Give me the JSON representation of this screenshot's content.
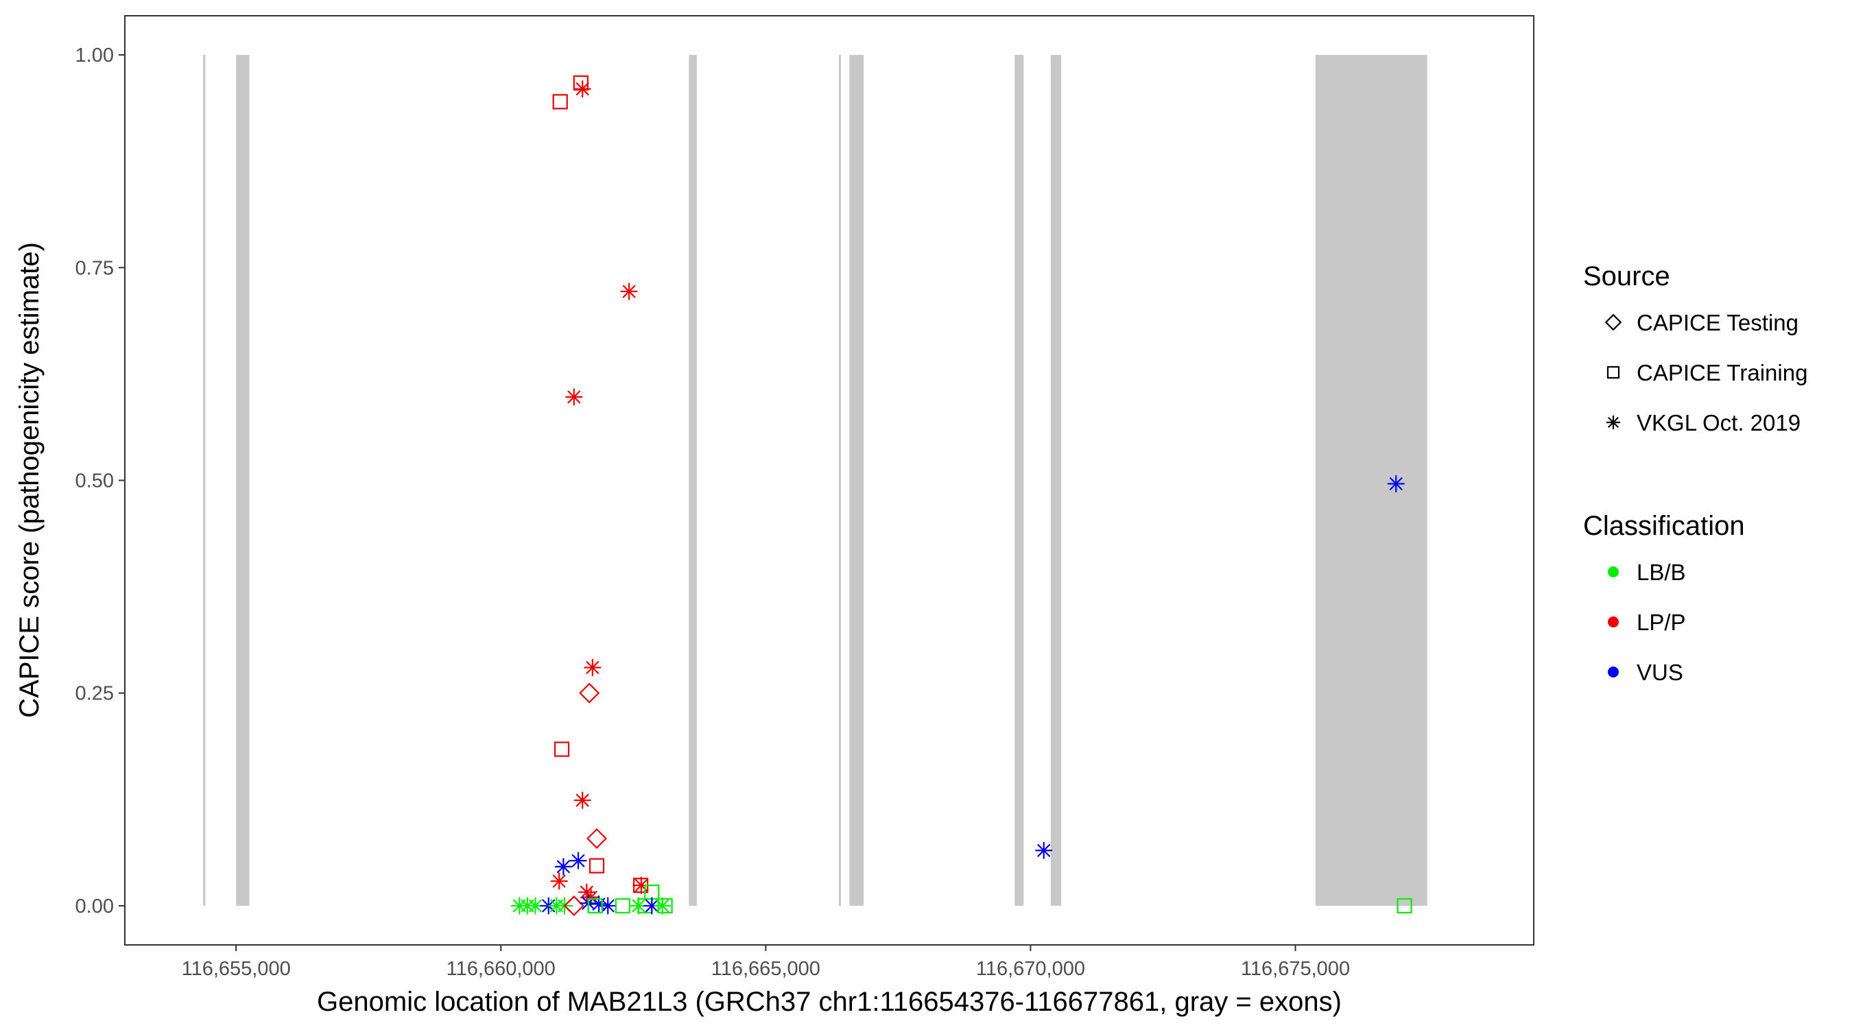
{
  "chart_data": {
    "type": "scatter",
    "xlabel": "Genomic location of MAB21L3 (GRCh37 chr1:116654376-116677861, gray = exons)",
    "ylabel": "CAPICE score (pathogenicity estimate)",
    "xlim": [
      116652900,
      116679500
    ],
    "ylim": [
      -0.046,
      1.046
    ],
    "x_ticks": [
      116655000,
      116660000,
      116665000,
      116670000,
      116675000
    ],
    "x_tick_labels": [
      "116,655,000",
      "116,660,000",
      "116,665,000",
      "116,670,000",
      "116,675,000"
    ],
    "y_ticks": [
      0,
      0.25,
      0.5,
      0.75,
      1.0
    ],
    "y_tick_labels": [
      "0.00",
      "0.25",
      "0.50",
      "0.75",
      "1.00"
    ],
    "grid": false,
    "exons": [
      {
        "start": 116654376,
        "end": 116654420
      },
      {
        "start": 116655000,
        "end": 116655250
      },
      {
        "start": 116663550,
        "end": 116663700
      },
      {
        "start": 116666380,
        "end": 116666420
      },
      {
        "start": 116666580,
        "end": 116666850
      },
      {
        "start": 116669700,
        "end": 116669870
      },
      {
        "start": 116670380,
        "end": 116670580
      },
      {
        "start": 116675380,
        "end": 116677490
      }
    ],
    "legend": {
      "position": "right",
      "source": {
        "title": "Source",
        "items": [
          {
            "label": "CAPICE Testing",
            "shape": "diamond"
          },
          {
            "label": "CAPICE Training",
            "shape": "square"
          },
          {
            "label": "VKGL Oct. 2019",
            "shape": "asterisk"
          }
        ]
      },
      "classification": {
        "title": "Classification",
        "items": [
          {
            "label": "LB/B",
            "color": "#00ee00"
          },
          {
            "label": "LP/P",
            "color": "#ee0000"
          },
          {
            "label": "VUS",
            "color": "#0000ee"
          }
        ]
      }
    },
    "series": [
      {
        "source": "CAPICE Training",
        "classification": "LP/P",
        "x": 116661120,
        "y": 0.945
      },
      {
        "source": "CAPICE Training",
        "classification": "LP/P",
        "x": 116661510,
        "y": 0.967
      },
      {
        "source": "VKGL Oct. 2019",
        "classification": "LP/P",
        "x": 116661540,
        "y": 0.96
      },
      {
        "source": "VKGL Oct. 2019",
        "classification": "LP/P",
        "x": 116662420,
        "y": 0.722
      },
      {
        "source": "VKGL Oct. 2019",
        "classification": "LP/P",
        "x": 116661380,
        "y": 0.598
      },
      {
        "source": "VKGL Oct. 2019",
        "classification": "VUS",
        "x": 116676900,
        "y": 0.496
      },
      {
        "source": "VKGL Oct. 2019",
        "classification": "LP/P",
        "x": 116661730,
        "y": 0.28
      },
      {
        "source": "CAPICE Testing",
        "classification": "LP/P",
        "x": 116661670,
        "y": 0.25
      },
      {
        "source": "CAPICE Training",
        "classification": "LP/P",
        "x": 116661150,
        "y": 0.184
      },
      {
        "source": "VKGL Oct. 2019",
        "classification": "LP/P",
        "x": 116661540,
        "y": 0.124
      },
      {
        "source": "CAPICE Testing",
        "classification": "LP/P",
        "x": 116661810,
        "y": 0.079
      },
      {
        "source": "VKGL Oct. 2019",
        "classification": "VUS",
        "x": 116670250,
        "y": 0.065
      },
      {
        "source": "VKGL Oct. 2019",
        "classification": "VUS",
        "x": 116661460,
        "y": 0.053
      },
      {
        "source": "VKGL Oct. 2019",
        "classification": "VUS",
        "x": 116661180,
        "y": 0.046
      },
      {
        "source": "CAPICE Training",
        "classification": "LP/P",
        "x": 116661810,
        "y": 0.047
      },
      {
        "source": "VKGL Oct. 2019",
        "classification": "LP/P",
        "x": 116661100,
        "y": 0.029
      },
      {
        "source": "VKGL Oct. 2019",
        "classification": "LP/P",
        "x": 116662650,
        "y": 0.024
      },
      {
        "source": "CAPICE Training",
        "classification": "LP/P",
        "x": 116662640,
        "y": 0.024
      },
      {
        "source": "VKGL Oct. 2019",
        "classification": "LP/P",
        "x": 116661620,
        "y": 0.016
      },
      {
        "source": "CAPICE Training",
        "classification": "LB/B",
        "x": 116662850,
        "y": 0.016
      },
      {
        "source": "VKGL Oct. 2019",
        "classification": "LP/P",
        "x": 116661700,
        "y": 0.01
      },
      {
        "source": "VKGL Oct. 2019",
        "classification": "LB/B",
        "x": 116660350,
        "y": 0.0
      },
      {
        "source": "VKGL Oct. 2019",
        "classification": "LB/B",
        "x": 116660500,
        "y": 0.0
      },
      {
        "source": "VKGL Oct. 2019",
        "classification": "LB/B",
        "x": 116660650,
        "y": 0.0
      },
      {
        "source": "VKGL Oct. 2019",
        "classification": "VUS",
        "x": 116660900,
        "y": 0.0
      },
      {
        "source": "VKGL Oct. 2019",
        "classification": "LB/B",
        "x": 116661050,
        "y": 0.0
      },
      {
        "source": "VKGL Oct. 2019",
        "classification": "LB/B",
        "x": 116661200,
        "y": 0.0
      },
      {
        "source": "CAPICE Testing",
        "classification": "LP/P",
        "x": 116661380,
        "y": 0.0
      },
      {
        "source": "VKGL Oct. 2019",
        "classification": "VUS",
        "x": 116661650,
        "y": 0.003
      },
      {
        "source": "VKGL Oct. 2019",
        "classification": "VUS",
        "x": 116661850,
        "y": 0.002
      },
      {
        "source": "VKGL Oct. 2019",
        "classification": "VUS",
        "x": 116662020,
        "y": 0.0
      },
      {
        "source": "CAPICE Training",
        "classification": "LB/B",
        "x": 116661780,
        "y": 0.0
      },
      {
        "source": "CAPICE Training",
        "classification": "LB/B",
        "x": 116662300,
        "y": 0.0
      },
      {
        "source": "VKGL Oct. 2019",
        "classification": "LB/B",
        "x": 116662600,
        "y": 0.0
      },
      {
        "source": "CAPICE Training",
        "classification": "LB/B",
        "x": 116662720,
        "y": 0.0
      },
      {
        "source": "VKGL Oct. 2019",
        "classification": "VUS",
        "x": 116662850,
        "y": 0.0
      },
      {
        "source": "VKGL Oct. 2019",
        "classification": "LB/B",
        "x": 116663050,
        "y": 0.0
      },
      {
        "source": "CAPICE Training",
        "classification": "LB/B",
        "x": 116663100,
        "y": 0.0
      },
      {
        "source": "CAPICE Training",
        "classification": "LB/B",
        "x": 116677060,
        "y": 0.0
      }
    ]
  }
}
